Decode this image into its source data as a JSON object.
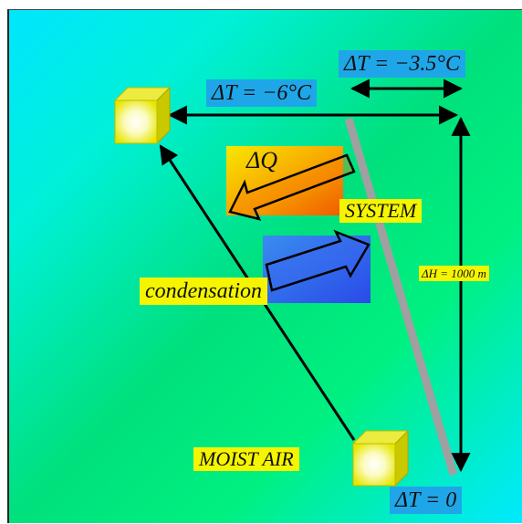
{
  "labels": {
    "delta_t_top": "ΔT = −3.5°C",
    "delta_t_left": "ΔT = −6°C",
    "delta_q": "ΔQ",
    "system": "SYSTEM",
    "delta_h": "ΔH = 1000 m",
    "condensation": "condensation",
    "moist_air": "MOIST AIR",
    "delta_t_bottom": "ΔT = 0"
  },
  "colors": {
    "background_start": "#00e6ff",
    "background_mid": "#00e07c",
    "label_yellow": "#f5f500",
    "label_blue": "#1fa6e8",
    "arrow": "#000000",
    "system_line": "#a0a0a0",
    "heat_block_orange": "#f57a00",
    "blue_block": "#2a5cf0"
  },
  "icons": {
    "parcel_top": "cube-icon",
    "parcel_bottom": "cube-icon",
    "heat_arrow": "hollow-arrow-icon",
    "condensation_arrow": "hollow-arrow-icon"
  }
}
